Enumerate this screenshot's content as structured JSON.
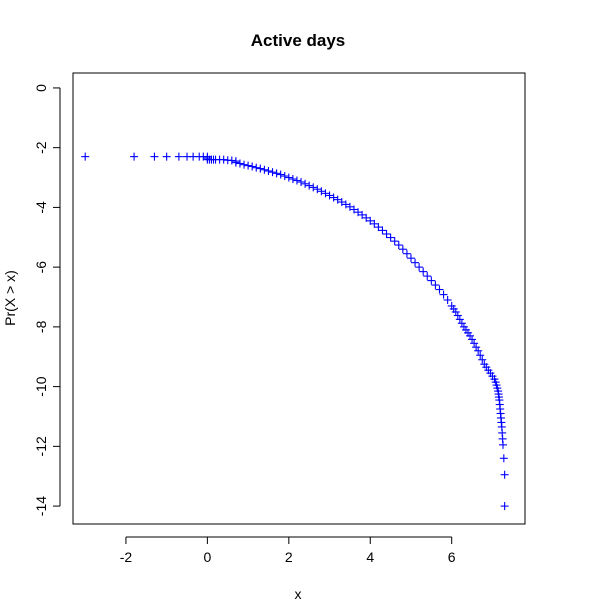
{
  "chart_data": {
    "type": "scatter",
    "title": "Active days",
    "xlabel": "x",
    "ylabel": "Pr(X > x)",
    "xlim": [
      -3.3,
      7.8
    ],
    "ylim": [
      -14.6,
      0.5
    ],
    "xticks": [
      -2,
      0,
      2,
      4,
      6
    ],
    "yticks": [
      0,
      -2,
      -4,
      -6,
      -8,
      -10,
      -12,
      -14
    ],
    "grid": false,
    "marker": "+",
    "marker_color": "#0000ff",
    "series": [
      {
        "x": [
          -3.0,
          -1.8,
          -1.3,
          -1.0,
          -0.7,
          -0.5,
          -0.35,
          -0.2,
          -0.1,
          0.0,
          0.0,
          0.0,
          0.05,
          0.1,
          0.15,
          0.2,
          0.3,
          0.4,
          0.5,
          0.6,
          0.7,
          0.7,
          0.8,
          0.9,
          1.0,
          1.1,
          1.2,
          1.3,
          1.4,
          1.5,
          1.6,
          1.7,
          1.8,
          1.9,
          2.0,
          2.1,
          2.2,
          2.3,
          2.4,
          2.5,
          2.6,
          2.7,
          2.8,
          2.9,
          3.0,
          3.1,
          3.2,
          3.3,
          3.4,
          3.5,
          3.6,
          3.7,
          3.8,
          3.9,
          4.0,
          4.1,
          4.2,
          4.3,
          4.4,
          4.5,
          4.6,
          4.7,
          4.8,
          4.9,
          5.0,
          5.1,
          5.2,
          5.3,
          5.4,
          5.5,
          5.6,
          5.7,
          5.8,
          5.9,
          6.0,
          6.05,
          6.1,
          6.15,
          6.2,
          6.25,
          6.3,
          6.35,
          6.4,
          6.45,
          6.5,
          6.55,
          6.6,
          6.65,
          6.7,
          6.75,
          6.8,
          6.85,
          6.9,
          6.95,
          7.0,
          7.05,
          7.08,
          7.1,
          7.12,
          7.14,
          7.15,
          7.16,
          7.17,
          7.18,
          7.19,
          7.2,
          7.21,
          7.22,
          7.23,
          7.24,
          7.25,
          7.26,
          7.28,
          7.3,
          7.3
        ],
        "y": [
          -2.3,
          -2.3,
          -2.3,
          -2.3,
          -2.3,
          -2.3,
          -2.3,
          -2.3,
          -2.3,
          -2.3,
          -2.35,
          -2.4,
          -2.4,
          -2.4,
          -2.4,
          -2.4,
          -2.4,
          -2.4,
          -2.42,
          -2.43,
          -2.45,
          -2.5,
          -2.53,
          -2.57,
          -2.6,
          -2.63,
          -2.67,
          -2.7,
          -2.74,
          -2.78,
          -2.82,
          -2.86,
          -2.9,
          -2.95,
          -3.0,
          -3.05,
          -3.1,
          -3.15,
          -3.21,
          -3.27,
          -3.33,
          -3.39,
          -3.46,
          -3.53,
          -3.6,
          -3.67,
          -3.74,
          -3.82,
          -3.9,
          -3.98,
          -4.07,
          -4.16,
          -4.25,
          -4.35,
          -4.45,
          -4.55,
          -4.66,
          -4.77,
          -4.89,
          -5.01,
          -5.13,
          -5.26,
          -5.4,
          -5.55,
          -5.7,
          -5.85,
          -6.0,
          -6.15,
          -6.3,
          -6.45,
          -6.6,
          -6.75,
          -6.92,
          -7.1,
          -7.3,
          -7.4,
          -7.5,
          -7.62,
          -7.75,
          -7.88,
          -8.0,
          -8.1,
          -8.2,
          -8.3,
          -8.42,
          -8.55,
          -8.68,
          -8.8,
          -8.95,
          -9.1,
          -9.25,
          -9.35,
          -9.45,
          -9.55,
          -9.65,
          -9.75,
          -9.85,
          -9.95,
          -10.05,
          -10.15,
          -10.25,
          -10.35,
          -10.45,
          -10.6,
          -10.75,
          -10.9,
          -11.05,
          -11.2,
          -11.35,
          -11.55,
          -11.75,
          -11.95,
          -12.4,
          -12.95,
          -14.0
        ]
      }
    ]
  }
}
